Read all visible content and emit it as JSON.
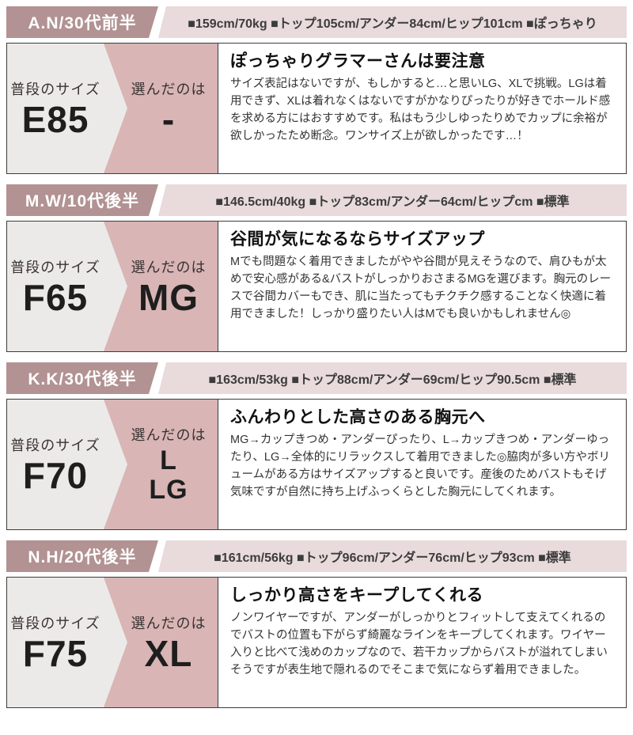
{
  "colors": {
    "mauve": "#b29292",
    "header_pink": "#e9dbdb",
    "panel_pink": "#d9b5b5",
    "panel_gray": "#eceae8",
    "border": "#3c3c3c"
  },
  "labels": {
    "usual": "普段のサイズ",
    "chosen": "選んだのは"
  },
  "sections": [
    {
      "reviewer": "A.N/30代前半",
      "stats": "■159cm/70kg ■トップ105cm/アンダー84cm/ヒップ101cm ■ぽっちゃり",
      "usual_size": "E85",
      "chosen": [
        "-"
      ],
      "title": "ぽっちゃりグラマーさんは要注意",
      "body": "サイズ表記はないですが、もしかすると…と思いLG、XLで挑戦。LGは着用できず、XLは着れなくはないですがかなりぴったりが好きでホールド感を求める方にはおすすめです。私はもう少しゆったりめでカップに余裕が欲しかったため断念。ワンサイズ上が欲しかったです…！"
    },
    {
      "reviewer": "M.W/10代後半",
      "stats": "■146.5cm/40kg ■トップ83cm/アンダー64cm/ヒップcm ■標準",
      "usual_size": "F65",
      "chosen": [
        "MG"
      ],
      "title": "谷間が気になるならサイズアップ",
      "body": "Mでも問題なく着用できましたがやや谷間が見えそうなので、肩ひもが太めで安心感がある&バストがしっかりおさまるMGを選びます。胸元のレースで谷間カバーもでき、肌に当たってもチクチク感することなく快適に着用できました！しっかり盛りたい人はMでも良いかもしれません◎"
    },
    {
      "reviewer": "K.K/30代後半",
      "stats": "■163cm/53kg ■トップ88cm/アンダー69cm/ヒップ90.5cm ■標準",
      "usual_size": "F70",
      "chosen": [
        "L",
        "LG"
      ],
      "title": "ふんわりとした高さのある胸元へ",
      "body": "MG→カップきつめ・アンダーぴったり、L→カップきつめ・アンダーゆったり、LG→全体的にリラックスして着用できました◎脇肉が多い方やボリュームがある方はサイズアップすると良いです。産後のためバストもそげ気味ですが自然に持ち上げふっくらとした胸元にしてくれます。"
    },
    {
      "reviewer": "N.H/20代後半",
      "stats": "■161cm/56kg ■トップ96cm/アンダー76cm/ヒップ93cm ■標準",
      "usual_size": "F75",
      "chosen": [
        "XL"
      ],
      "title": "しっかり高さをキープしてくれる",
      "body": "ノンワイヤーですが、アンダーがしっかりとフィットして支えてくれるのでバストの位置も下がらず綺麗なラインをキープしてくれます。ワイヤー入りと比べて浅めのカップなので、若干カップからバストが溢れてしまいそうですが表生地で隠れるのでそこまで気にならず着用できました。"
    }
  ]
}
